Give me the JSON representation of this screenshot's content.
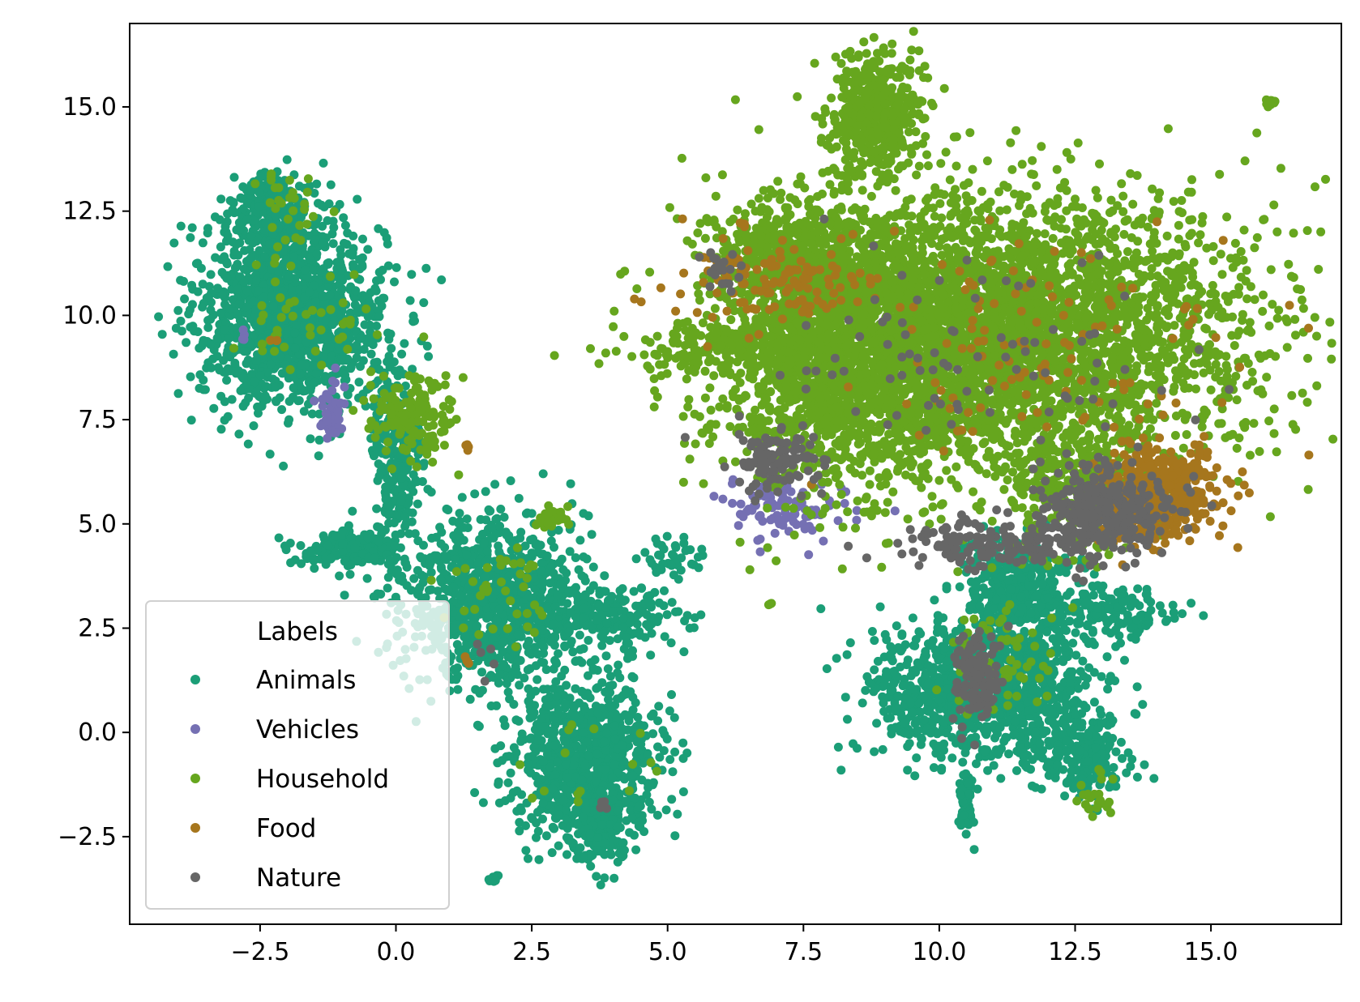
{
  "chart_data": {
    "type": "scatter",
    "title": "",
    "xlabel": "",
    "ylabel": "",
    "xlim": [
      -4.9,
      17.4
    ],
    "ylim": [
      -4.6,
      17.0
    ],
    "x_ticks": [
      -2.5,
      0.0,
      2.5,
      5.0,
      7.5,
      10.0,
      12.5,
      15.0
    ],
    "x_tick_labels": [
      "−2.5",
      "0.0",
      "2.5",
      "5.0",
      "7.5",
      "10.0",
      "12.5",
      "15.0"
    ],
    "y_ticks": [
      -2.5,
      0.0,
      2.5,
      5.0,
      7.5,
      10.0,
      12.5,
      15.0
    ],
    "y_tick_labels": [
      "−2.5",
      "0.0",
      "2.5",
      "5.0",
      "7.5",
      "10.0",
      "12.5",
      "15.0"
    ],
    "grid": false,
    "legend": {
      "title": "Labels",
      "placement": "lower-left",
      "entries": [
        "Animals",
        "Vehicles",
        "Household",
        "Food",
        "Nature"
      ]
    },
    "series": [
      {
        "name": "Animals",
        "color": "#1b9e77",
        "clusters": [
          {
            "cx": -1.9,
            "cy": 10.0,
            "sx": 0.85,
            "sy": 1.1,
            "n": 1400
          },
          {
            "cx": -2.3,
            "cy": 12.5,
            "sx": 0.35,
            "sy": 0.45,
            "n": 250
          },
          {
            "cx": 0.0,
            "cy": 6.5,
            "sx": 0.25,
            "sy": 1.2,
            "n": 250
          },
          {
            "cx": -0.8,
            "cy": 4.4,
            "sx": 0.5,
            "sy": 0.2,
            "n": 200
          },
          {
            "cx": 1.7,
            "cy": 3.2,
            "sx": 0.8,
            "sy": 1.0,
            "n": 900
          },
          {
            "cx": 3.6,
            "cy": 2.8,
            "sx": 0.8,
            "sy": 0.4,
            "n": 250
          },
          {
            "cx": 3.5,
            "cy": -0.6,
            "sx": 0.7,
            "sy": 0.9,
            "n": 900
          },
          {
            "cx": 3.7,
            "cy": -2.3,
            "sx": 0.25,
            "sy": 0.5,
            "n": 150
          },
          {
            "cx": 10.8,
            "cy": 1.0,
            "sx": 1.0,
            "sy": 0.8,
            "n": 1100
          },
          {
            "cx": 11.4,
            "cy": 3.3,
            "sx": 0.5,
            "sy": 0.7,
            "n": 400
          },
          {
            "cx": 12.6,
            "cy": -0.6,
            "sx": 0.4,
            "sy": 0.5,
            "n": 200
          },
          {
            "cx": 10.5,
            "cy": -1.7,
            "sx": 0.08,
            "sy": 0.4,
            "n": 60
          },
          {
            "cx": 13.2,
            "cy": 2.9,
            "sx": 0.6,
            "sy": 0.3,
            "n": 150
          },
          {
            "cx": 5.1,
            "cy": 4.2,
            "sx": 0.3,
            "sy": 0.2,
            "n": 40
          },
          {
            "cx": 1.8,
            "cy": -3.5,
            "sx": 0.05,
            "sy": 0.05,
            "n": 10
          }
        ]
      },
      {
        "name": "Vehicles",
        "color": "#7570b3",
        "clusters": [
          {
            "cx": -1.2,
            "cy": 7.6,
            "sx": 0.12,
            "sy": 0.35,
            "n": 50
          },
          {
            "cx": 7.0,
            "cy": 5.3,
            "sx": 0.6,
            "sy": 0.4,
            "n": 90
          },
          {
            "cx": -2.8,
            "cy": 9.5,
            "sx": 0.05,
            "sy": 0.05,
            "n": 4
          }
        ]
      },
      {
        "name": "Household",
        "color": "#66a61e",
        "clusters": [
          {
            "cx": 11.0,
            "cy": 9.6,
            "sx": 2.3,
            "sy": 1.6,
            "n": 3800
          },
          {
            "cx": 8.2,
            "cy": 9.0,
            "sx": 1.2,
            "sy": 1.6,
            "n": 1600
          },
          {
            "cx": 7.3,
            "cy": 11.6,
            "sx": 0.7,
            "sy": 0.6,
            "n": 400
          },
          {
            "cx": 8.8,
            "cy": 14.8,
            "sx": 0.4,
            "sy": 0.7,
            "n": 500
          },
          {
            "cx": 6.0,
            "cy": 9.2,
            "sx": 0.8,
            "sy": 0.3,
            "n": 150
          },
          {
            "cx": 12.5,
            "cy": 5.8,
            "sx": 0.7,
            "sy": 0.8,
            "n": 300
          },
          {
            "cx": 0.3,
            "cy": 7.6,
            "sx": 0.4,
            "sy": 0.5,
            "n": 160
          },
          {
            "cx": -2.0,
            "cy": 12.5,
            "sx": 0.3,
            "sy": 0.4,
            "n": 30
          },
          {
            "cx": -2.0,
            "cy": 9.8,
            "sx": 0.8,
            "sy": 0.7,
            "n": 45
          },
          {
            "cx": 1.9,
            "cy": 3.3,
            "sx": 0.5,
            "sy": 0.6,
            "n": 40
          },
          {
            "cx": 2.9,
            "cy": 5.2,
            "sx": 0.15,
            "sy": 0.25,
            "n": 30
          },
          {
            "cx": 11.2,
            "cy": 1.8,
            "sx": 0.5,
            "sy": 0.7,
            "n": 60
          },
          {
            "cx": 12.8,
            "cy": -1.5,
            "sx": 0.2,
            "sy": 0.3,
            "n": 25
          },
          {
            "cx": 16.1,
            "cy": 15.1,
            "sx": 0.05,
            "sy": 0.05,
            "n": 15
          },
          {
            "cx": 6.9,
            "cy": 3.1,
            "sx": 0.02,
            "sy": 0.02,
            "n": 4
          },
          {
            "cx": 3.6,
            "cy": -0.6,
            "sx": 0.5,
            "sy": 0.6,
            "n": 15
          }
        ]
      },
      {
        "name": "Food",
        "color": "#a6761d",
        "clusters": [
          {
            "cx": 14.0,
            "cy": 5.7,
            "sx": 0.55,
            "sy": 0.6,
            "n": 450
          },
          {
            "cx": 7.0,
            "cy": 10.8,
            "sx": 0.9,
            "sy": 0.5,
            "n": 120
          },
          {
            "cx": 11.5,
            "cy": 9.3,
            "sx": 1.8,
            "sy": 1.3,
            "n": 120
          },
          {
            "cx": 6.4,
            "cy": 12.2,
            "sx": 0.05,
            "sy": 0.05,
            "n": 3
          },
          {
            "cx": 1.3,
            "cy": 6.9,
            "sx": 0.05,
            "sy": 0.1,
            "n": 4
          },
          {
            "cx": 1.3,
            "cy": 1.7,
            "sx": 0.05,
            "sy": 0.05,
            "n": 3
          },
          {
            "cx": -2.2,
            "cy": 9.4,
            "sx": 0.05,
            "sy": 0.05,
            "n": 3
          }
        ]
      },
      {
        "name": "Nature",
        "color": "#666666",
        "clusters": [
          {
            "cx": 13.0,
            "cy": 5.3,
            "sx": 0.6,
            "sy": 0.5,
            "n": 350
          },
          {
            "cx": 11.2,
            "cy": 4.5,
            "sx": 1.0,
            "sy": 0.3,
            "n": 160
          },
          {
            "cx": 7.0,
            "cy": 6.5,
            "sx": 0.4,
            "sy": 0.4,
            "n": 110
          },
          {
            "cx": 10.7,
            "cy": 1.2,
            "sx": 0.2,
            "sy": 0.6,
            "n": 130
          },
          {
            "cx": 10.5,
            "cy": 9.0,
            "sx": 2.0,
            "sy": 1.2,
            "n": 90
          },
          {
            "cx": 6.0,
            "cy": 11.0,
            "sx": 0.2,
            "sy": 0.3,
            "n": 20
          },
          {
            "cx": 3.9,
            "cy": -1.7,
            "sx": 0.1,
            "sy": 0.1,
            "n": 4
          },
          {
            "cx": 1.8,
            "cy": 1.7,
            "sx": 0.1,
            "sy": 0.2,
            "n": 5
          }
        ]
      }
    ]
  }
}
